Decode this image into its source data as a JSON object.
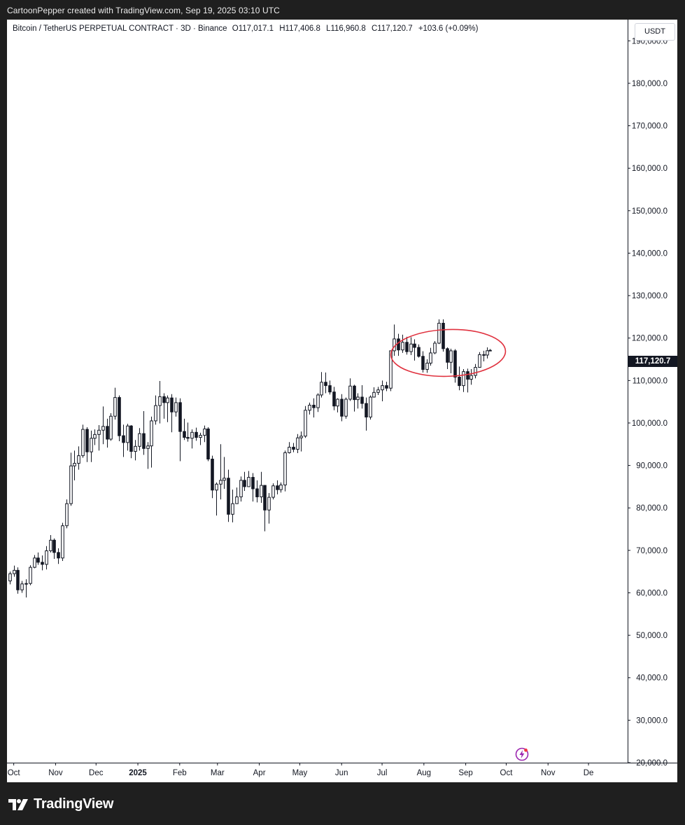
{
  "header": {
    "credit": "CartoonPepper created with TradingView.com, Sep 19, 2025 03:10 UTC"
  },
  "legend": {
    "symbol": "Bitcoin / TetherUS PERPETUAL CONTRACT · 3D · Binance",
    "open_label": "O",
    "open": "117,017.1",
    "high_label": "H",
    "high": "117,406.8",
    "low_label": "L",
    "low": "116,960.8",
    "close_label": "C",
    "close": "117,120.7",
    "change": "+103.6 (+0.09%)"
  },
  "currency": "USDT",
  "last_price_label": "117,120.7",
  "footer": {
    "brand": "TradingView"
  },
  "colors": {
    "up_body": "#ffffff",
    "down_body": "#131722",
    "wick": "#131722",
    "annotation": "#e0323f",
    "text": "#131722",
    "axis_border": "#131722"
  },
  "icons": [
    "tradingview-logo-icon",
    "lightning-bolt-icon"
  ],
  "chart_data": {
    "type": "candlestick",
    "interval": "3D",
    "y_axis": {
      "ticks": [
        "190,000.0",
        "180,000.0",
        "170,000.0",
        "160,000.0",
        "150,000.0",
        "140,000.0",
        "130,000.0",
        "120,000.0",
        "110,000.0",
        "100,000.0",
        "90,000.0",
        "80,000.0",
        "70,000.0",
        "60,000.0",
        "50,000.0",
        "40,000.0",
        "30,000.0",
        "20,000.0"
      ],
      "tick_values": [
        190000,
        180000,
        170000,
        160000,
        150000,
        140000,
        130000,
        120000,
        110000,
        100000,
        90000,
        80000,
        70000,
        60000,
        50000,
        40000,
        30000,
        20000
      ],
      "range": [
        20000,
        195000
      ]
    },
    "x_axis": {
      "ticks": [
        "Oct",
        "Nov",
        "Dec",
        "2025",
        "Feb",
        "Mar",
        "Apr",
        "May",
        "Jun",
        "Jul",
        "Aug",
        "Sep",
        "Oct",
        "Nov",
        "De"
      ],
      "tick_dates": [
        "2024-10-01",
        "2024-11-01",
        "2024-12-01",
        "2025-01-01",
        "2025-02-01",
        "2025-03-01",
        "2025-04-01",
        "2025-05-01",
        "2025-06-01",
        "2025-07-01",
        "2025-08-01",
        "2025-09-01",
        "2025-10-01",
        "2025-11-01",
        "2025-12-01"
      ],
      "range": [
        "2024-09-26",
        "2025-12-30"
      ]
    },
    "annotation": {
      "type": "ellipse",
      "center_date": "2025-08-19",
      "center_price": 116500,
      "span_days": 85,
      "span_price": 11000
    },
    "candles": [
      {
        "d": "2024-09-28",
        "o": 62800,
        "h": 65000,
        "l": 62000,
        "c": 64500
      },
      {
        "d": "2024-10-01",
        "o": 64500,
        "h": 66400,
        "l": 63800,
        "c": 65300
      },
      {
        "d": "2024-10-04",
        "o": 65300,
        "h": 66000,
        "l": 59800,
        "c": 60700
      },
      {
        "d": "2024-10-07",
        "o": 60700,
        "h": 62800,
        "l": 60000,
        "c": 62100
      },
      {
        "d": "2024-10-10",
        "o": 62100,
        "h": 63200,
        "l": 58900,
        "c": 62200
      },
      {
        "d": "2024-10-13",
        "o": 62200,
        "h": 66500,
        "l": 61800,
        "c": 66000
      },
      {
        "d": "2024-10-16",
        "o": 66000,
        "h": 68900,
        "l": 65800,
        "c": 68200
      },
      {
        "d": "2024-10-19",
        "o": 68200,
        "h": 69500,
        "l": 66600,
        "c": 67200
      },
      {
        "d": "2024-10-22",
        "o": 67200,
        "h": 68800,
        "l": 65300,
        "c": 66700
      },
      {
        "d": "2024-10-25",
        "o": 66700,
        "h": 71000,
        "l": 65500,
        "c": 69900
      },
      {
        "d": "2024-10-28",
        "o": 69900,
        "h": 73600,
        "l": 69500,
        "c": 72400
      },
      {
        "d": "2024-10-31",
        "o": 72400,
        "h": 72800,
        "l": 68000,
        "c": 69500
      },
      {
        "d": "2024-11-03",
        "o": 69500,
        "h": 70500,
        "l": 66800,
        "c": 68200
      },
      {
        "d": "2024-11-06",
        "o": 68200,
        "h": 76500,
        "l": 67500,
        "c": 75800
      },
      {
        "d": "2024-11-09",
        "o": 75800,
        "h": 82000,
        "l": 75200,
        "c": 81000
      },
      {
        "d": "2024-11-12",
        "o": 81000,
        "h": 93000,
        "l": 80500,
        "c": 89900
      },
      {
        "d": "2024-11-15",
        "o": 89900,
        "h": 93500,
        "l": 86500,
        "c": 90500
      },
      {
        "d": "2024-11-18",
        "o": 90500,
        "h": 94500,
        "l": 89000,
        "c": 92300
      },
      {
        "d": "2024-11-21",
        "o": 92300,
        "h": 99600,
        "l": 91800,
        "c": 98500
      },
      {
        "d": "2024-11-24",
        "o": 98500,
        "h": 99000,
        "l": 90800,
        "c": 93200
      },
      {
        "d": "2024-11-27",
        "o": 93200,
        "h": 98200,
        "l": 90800,
        "c": 96400
      },
      {
        "d": "2024-11-30",
        "o": 96400,
        "h": 98500,
        "l": 94800,
        "c": 97300
      },
      {
        "d": "2024-12-03",
        "o": 97300,
        "h": 99500,
        "l": 93500,
        "c": 98300
      },
      {
        "d": "2024-12-06",
        "o": 98300,
        "h": 103900,
        "l": 95000,
        "c": 99200
      },
      {
        "d": "2024-12-09",
        "o": 99200,
        "h": 101000,
        "l": 94200,
        "c": 96200
      },
      {
        "d": "2024-12-12",
        "o": 96200,
        "h": 102300,
        "l": 95800,
        "c": 101600
      },
      {
        "d": "2024-12-15",
        "o": 101600,
        "h": 108300,
        "l": 100800,
        "c": 106000
      },
      {
        "d": "2024-12-18",
        "o": 106000,
        "h": 106500,
        "l": 95700,
        "c": 97000
      },
      {
        "d": "2024-12-21",
        "o": 97000,
        "h": 99600,
        "l": 92000,
        "c": 95400
      },
      {
        "d": "2024-12-24",
        "o": 95400,
        "h": 99800,
        "l": 93500,
        "c": 99300
      },
      {
        "d": "2024-12-27",
        "o": 99300,
        "h": 99500,
        "l": 91700,
        "c": 93300
      },
      {
        "d": "2024-12-30",
        "o": 93300,
        "h": 96000,
        "l": 91200,
        "c": 94500
      },
      {
        "d": "2025-01-02",
        "o": 94500,
        "h": 98800,
        "l": 93500,
        "c": 97500
      },
      {
        "d": "2025-01-05",
        "o": 97500,
        "h": 102800,
        "l": 92500,
        "c": 94000
      },
      {
        "d": "2025-01-08",
        "o": 94000,
        "h": 95500,
        "l": 89200,
        "c": 94600
      },
      {
        "d": "2025-01-11",
        "o": 94600,
        "h": 101500,
        "l": 89500,
        "c": 100500
      },
      {
        "d": "2025-01-14",
        "o": 100500,
        "h": 106500,
        "l": 99600,
        "c": 104100
      },
      {
        "d": "2025-01-17",
        "o": 104100,
        "h": 109900,
        "l": 99900,
        "c": 106200
      },
      {
        "d": "2025-01-20",
        "o": 106200,
        "h": 107000,
        "l": 101000,
        "c": 104800
      },
      {
        "d": "2025-01-23",
        "o": 104800,
        "h": 106500,
        "l": 100200,
        "c": 105900
      },
      {
        "d": "2025-01-26",
        "o": 105900,
        "h": 106800,
        "l": 97800,
        "c": 102600
      },
      {
        "d": "2025-01-29",
        "o": 102600,
        "h": 106000,
        "l": 101500,
        "c": 104800
      },
      {
        "d": "2025-02-01",
        "o": 104800,
        "h": 105800,
        "l": 91000,
        "c": 98000
      },
      {
        "d": "2025-02-04",
        "o": 98000,
        "h": 101000,
        "l": 96000,
        "c": 96600
      },
      {
        "d": "2025-02-07",
        "o": 96600,
        "h": 100100,
        "l": 95600,
        "c": 96400
      },
      {
        "d": "2025-02-10",
        "o": 96400,
        "h": 98500,
        "l": 94000,
        "c": 97800
      },
      {
        "d": "2025-02-13",
        "o": 97800,
        "h": 98900,
        "l": 95800,
        "c": 96600
      },
      {
        "d": "2025-02-16",
        "o": 96600,
        "h": 97700,
        "l": 94800,
        "c": 97100
      },
      {
        "d": "2025-02-19",
        "o": 97100,
        "h": 99400,
        "l": 95500,
        "c": 98600
      },
      {
        "d": "2025-02-22",
        "o": 98600,
        "h": 99000,
        "l": 91000,
        "c": 91500
      },
      {
        "d": "2025-02-25",
        "o": 91500,
        "h": 92300,
        "l": 82300,
        "c": 84200
      },
      {
        "d": "2025-02-28",
        "o": 84200,
        "h": 86000,
        "l": 78200,
        "c": 85600
      },
      {
        "d": "2025-03-03",
        "o": 85600,
        "h": 95000,
        "l": 82000,
        "c": 86500
      },
      {
        "d": "2025-03-06",
        "o": 86500,
        "h": 92000,
        "l": 84500,
        "c": 87000
      },
      {
        "d": "2025-03-09",
        "o": 87000,
        "h": 89000,
        "l": 76700,
        "c": 78500
      },
      {
        "d": "2025-03-12",
        "o": 78500,
        "h": 84300,
        "l": 76600,
        "c": 81000
      },
      {
        "d": "2025-03-15",
        "o": 81000,
        "h": 84800,
        "l": 81000,
        "c": 82600
      },
      {
        "d": "2025-03-18",
        "o": 82600,
        "h": 87400,
        "l": 81500,
        "c": 86500
      },
      {
        "d": "2025-03-21",
        "o": 86500,
        "h": 88500,
        "l": 84000,
        "c": 85000
      },
      {
        "d": "2025-03-24",
        "o": 85000,
        "h": 88700,
        "l": 85000,
        "c": 87200
      },
      {
        "d": "2025-03-27",
        "o": 87200,
        "h": 88200,
        "l": 81500,
        "c": 84500
      },
      {
        "d": "2025-03-30",
        "o": 84500,
        "h": 86500,
        "l": 81300,
        "c": 82600
      },
      {
        "d": "2025-04-02",
        "o": 82600,
        "h": 88500,
        "l": 81200,
        "c": 85300
      },
      {
        "d": "2025-04-05",
        "o": 85300,
        "h": 85400,
        "l": 74500,
        "c": 79500
      },
      {
        "d": "2025-04-08",
        "o": 79500,
        "h": 83500,
        "l": 76300,
        "c": 82500
      },
      {
        "d": "2025-04-11",
        "o": 82500,
        "h": 85800,
        "l": 82000,
        "c": 85200
      },
      {
        "d": "2025-04-14",
        "o": 85200,
        "h": 86500,
        "l": 83200,
        "c": 84300
      },
      {
        "d": "2025-04-17",
        "o": 84300,
        "h": 86000,
        "l": 83600,
        "c": 85400
      },
      {
        "d": "2025-04-20",
        "o": 85400,
        "h": 93500,
        "l": 83900,
        "c": 93000
      },
      {
        "d": "2025-04-23",
        "o": 93000,
        "h": 95500,
        "l": 92800,
        "c": 94300
      },
      {
        "d": "2025-04-26",
        "o": 94300,
        "h": 95300,
        "l": 93100,
        "c": 93800
      },
      {
        "d": "2025-04-29",
        "o": 93800,
        "h": 97400,
        "l": 92900,
        "c": 96500
      },
      {
        "d": "2025-05-02",
        "o": 96500,
        "h": 98000,
        "l": 93300,
        "c": 96900
      },
      {
        "d": "2025-05-05",
        "o": 96900,
        "h": 104000,
        "l": 96500,
        "c": 103000
      },
      {
        "d": "2025-05-08",
        "o": 103000,
        "h": 104800,
        "l": 102000,
        "c": 104200
      },
      {
        "d": "2025-05-11",
        "o": 104200,
        "h": 105800,
        "l": 101300,
        "c": 103600
      },
      {
        "d": "2025-05-14",
        "o": 103600,
        "h": 107000,
        "l": 102600,
        "c": 106600
      },
      {
        "d": "2025-05-17",
        "o": 106600,
        "h": 112000,
        "l": 106000,
        "c": 109600
      },
      {
        "d": "2025-05-20",
        "o": 109600,
        "h": 111900,
        "l": 107000,
        "c": 108800
      },
      {
        "d": "2025-05-23",
        "o": 108800,
        "h": 110000,
        "l": 106700,
        "c": 107300
      },
      {
        "d": "2025-05-26",
        "o": 107300,
        "h": 108500,
        "l": 103000,
        "c": 104000
      },
      {
        "d": "2025-05-29",
        "o": 104000,
        "h": 105800,
        "l": 102500,
        "c": 105600
      },
      {
        "d": "2025-06-01",
        "o": 105600,
        "h": 106800,
        "l": 100400,
        "c": 101600
      },
      {
        "d": "2025-06-04",
        "o": 101600,
        "h": 106000,
        "l": 101000,
        "c": 105600
      },
      {
        "d": "2025-06-07",
        "o": 105600,
        "h": 110500,
        "l": 105200,
        "c": 108700
      },
      {
        "d": "2025-06-10",
        "o": 108700,
        "h": 109000,
        "l": 102700,
        "c": 105500
      },
      {
        "d": "2025-06-13",
        "o": 105500,
        "h": 107000,
        "l": 103400,
        "c": 106100
      },
      {
        "d": "2025-06-16",
        "o": 106100,
        "h": 108900,
        "l": 103400,
        "c": 104600
      },
      {
        "d": "2025-06-19",
        "o": 104600,
        "h": 106000,
        "l": 98200,
        "c": 101400
      },
      {
        "d": "2025-06-22",
        "o": 101400,
        "h": 106500,
        "l": 100800,
        "c": 106100
      },
      {
        "d": "2025-06-25",
        "o": 106100,
        "h": 108400,
        "l": 106000,
        "c": 107200
      },
      {
        "d": "2025-06-28",
        "o": 107200,
        "h": 108500,
        "l": 106600,
        "c": 107800
      },
      {
        "d": "2025-07-01",
        "o": 107800,
        "h": 110000,
        "l": 105100,
        "c": 108800
      },
      {
        "d": "2025-07-04",
        "o": 108800,
        "h": 109700,
        "l": 107500,
        "c": 108200
      },
      {
        "d": "2025-07-07",
        "o": 108200,
        "h": 117000,
        "l": 107500,
        "c": 117000
      },
      {
        "d": "2025-07-10",
        "o": 117000,
        "h": 123200,
        "l": 115800,
        "c": 119800
      },
      {
        "d": "2025-07-13",
        "o": 119800,
        "h": 121000,
        "l": 115800,
        "c": 117200
      },
      {
        "d": "2025-07-16",
        "o": 117200,
        "h": 120800,
        "l": 116500,
        "c": 119000
      },
      {
        "d": "2025-07-19",
        "o": 119000,
        "h": 120300,
        "l": 116100,
        "c": 116800
      },
      {
        "d": "2025-07-22",
        "o": 116800,
        "h": 120200,
        "l": 116000,
        "c": 118600
      },
      {
        "d": "2025-07-25",
        "o": 118600,
        "h": 119700,
        "l": 114700,
        "c": 117800
      },
      {
        "d": "2025-07-28",
        "o": 117800,
        "h": 118500,
        "l": 115400,
        "c": 115700
      },
      {
        "d": "2025-07-31",
        "o": 115700,
        "h": 116900,
        "l": 111900,
        "c": 112600
      },
      {
        "d": "2025-08-03",
        "o": 112600,
        "h": 115000,
        "l": 111800,
        "c": 114100
      },
      {
        "d": "2025-08-06",
        "o": 114100,
        "h": 117700,
        "l": 113500,
        "c": 116500
      },
      {
        "d": "2025-08-09",
        "o": 116500,
        "h": 119300,
        "l": 116200,
        "c": 118800
      },
      {
        "d": "2025-08-12",
        "o": 118800,
        "h": 124400,
        "l": 118600,
        "c": 123500
      },
      {
        "d": "2025-08-15",
        "o": 123500,
        "h": 124400,
        "l": 116800,
        "c": 117500
      },
      {
        "d": "2025-08-18",
        "o": 117500,
        "h": 117800,
        "l": 112700,
        "c": 114300
      },
      {
        "d": "2025-08-21",
        "o": 114300,
        "h": 117500,
        "l": 111700,
        "c": 117000
      },
      {
        "d": "2025-08-24",
        "o": 117000,
        "h": 117400,
        "l": 109500,
        "c": 110800
      },
      {
        "d": "2025-08-27",
        "o": 110800,
        "h": 113300,
        "l": 107700,
        "c": 108800
      },
      {
        "d": "2025-08-30",
        "o": 108800,
        "h": 112700,
        "l": 107300,
        "c": 112100
      },
      {
        "d": "2025-09-02",
        "o": 112100,
        "h": 112800,
        "l": 107200,
        "c": 110300
      },
      {
        "d": "2025-09-05",
        "o": 110300,
        "h": 112700,
        "l": 109000,
        "c": 111200
      },
      {
        "d": "2025-09-08",
        "o": 111200,
        "h": 113900,
        "l": 110500,
        "c": 113100
      },
      {
        "d": "2025-09-11",
        "o": 113100,
        "h": 116700,
        "l": 113000,
        "c": 116100
      },
      {
        "d": "2025-09-14",
        "o": 116100,
        "h": 117000,
        "l": 114500,
        "c": 116000
      },
      {
        "d": "2025-09-17",
        "o": 116000,
        "h": 117800,
        "l": 115200,
        "c": 117017
      },
      {
        "d": "2025-09-19",
        "o": 117017,
        "h": 117407,
        "l": 116961,
        "c": 117121
      }
    ]
  }
}
